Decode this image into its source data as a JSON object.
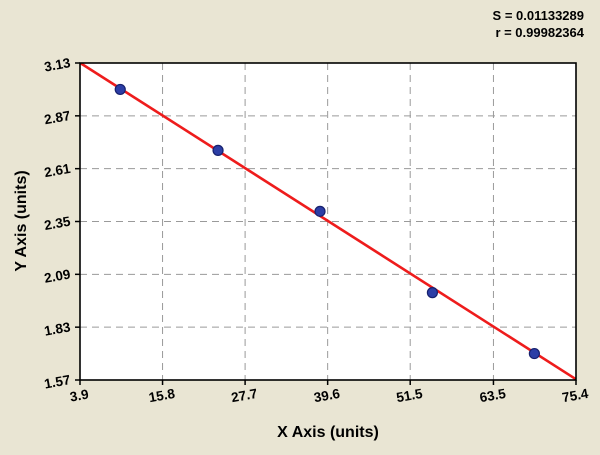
{
  "stats": {
    "s": "S = 0.01133289",
    "r": "r = 0.99982364"
  },
  "chart_data": {
    "type": "scatter",
    "title": "",
    "xlabel": "X Axis (units)",
    "ylabel": "Y Axis (units)",
    "xlim": [
      3.9,
      75.4
    ],
    "ylim": [
      1.57,
      3.13
    ],
    "x_ticks": [
      "3.9",
      "15.8",
      "27.7",
      "39.6",
      "51.5",
      "63.5",
      "75.4"
    ],
    "y_ticks": [
      "1.57",
      "1.83",
      "2.09",
      "2.35",
      "2.61",
      "2.87",
      "3.13"
    ],
    "grid": true,
    "legend": "none",
    "points": [
      {
        "x": 9.7,
        "y": 3.0
      },
      {
        "x": 23.8,
        "y": 2.7
      },
      {
        "x": 38.5,
        "y": 2.4
      },
      {
        "x": 54.7,
        "y": 2.0
      },
      {
        "x": 69.4,
        "y": 1.7
      }
    ],
    "fit_line": {
      "slope": -0.02178,
      "intercept": 3.216
    },
    "colors": {
      "background": "#e9e5d3",
      "plot_bg": "#ffffff",
      "grid": "#9a9a9a",
      "line": "#ee1c1c",
      "point_fill": "#2c3ea6",
      "point_edge": "#17216e",
      "axis": "#000000"
    }
  }
}
